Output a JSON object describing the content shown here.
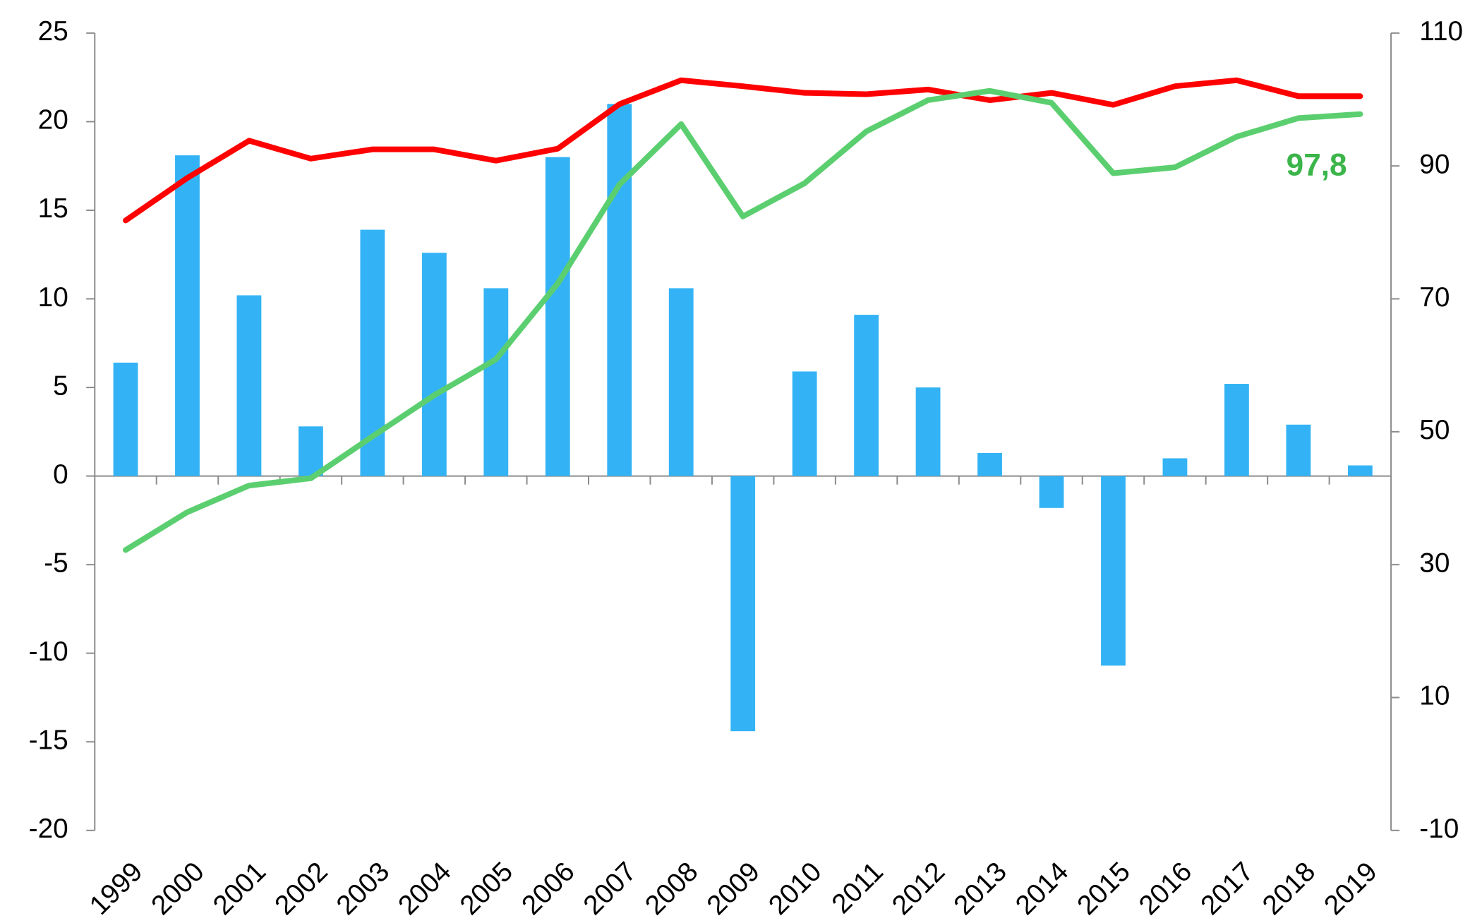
{
  "chart_data": {
    "type": "bar-line",
    "categories": [
      "1999",
      "2000",
      "2001",
      "2002",
      "2003",
      "2004",
      "2005",
      "2006",
      "2007",
      "2008",
      "2009",
      "2010",
      "2011",
      "2012",
      "2013",
      "2014",
      "2015",
      "2016",
      "2017",
      "2018",
      "2019"
    ],
    "series": [
      {
        "type": "bar",
        "color": "#33b3f5",
        "values": [
          6.4,
          18.1,
          10.2,
          2.8,
          13.9,
          12.6,
          10.6,
          18.0,
          21.0,
          10.6,
          -14.4,
          5.9,
          9.1,
          5.0,
          1.3,
          -1.8,
          -10.7,
          1.0,
          5.2,
          2.9,
          0.6
        ]
      },
      {
        "type": "line",
        "axis": "y2",
        "color": "#ff0000",
        "values": [
          81.8,
          88.2,
          93.8,
          91.1,
          92.5,
          92.5,
          90.8,
          92.6,
          99.3,
          102.9,
          102.0,
          101.0,
          100.8,
          101.5,
          99.9,
          101.0,
          99.2,
          102.0,
          102.9,
          100.5,
          100.5
        ]
      },
      {
        "type": "line",
        "axis": "y2",
        "color": "#5bcf6f",
        "label_color": "#3bb54a",
        "values": [
          32.2,
          37.9,
          41.9,
          43.0,
          49.3,
          55.5,
          60.9,
          72.3,
          87.2,
          96.3,
          82.4,
          87.4,
          95.2,
          99.9,
          101.3,
          99.5,
          88.9,
          89.8,
          94.4,
          97.2,
          97.8
        ],
        "value_labels": [
          null,
          null,
          null,
          null,
          null,
          null,
          null,
          null,
          null,
          null,
          null,
          null,
          null,
          null,
          null,
          null,
          null,
          null,
          null,
          null,
          "97,8"
        ]
      }
    ],
    "ylim": [
      -20,
      25
    ],
    "yticks": [
      -20,
      -15,
      -10,
      -5,
      0,
      5,
      10,
      15,
      20,
      25
    ],
    "y2lim": [
      -10,
      110
    ],
    "y2ticks": [
      -10,
      10,
      30,
      50,
      70,
      90,
      110
    ]
  }
}
